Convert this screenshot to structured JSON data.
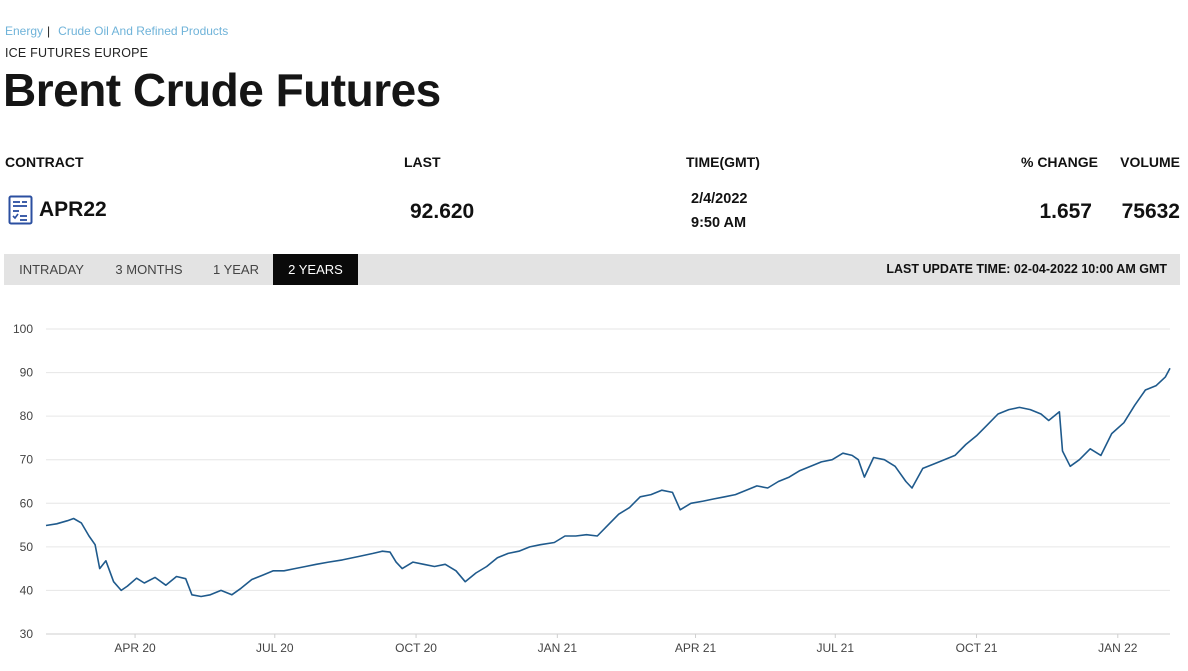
{
  "breadcrumb": {
    "sector": "Energy",
    "separator": "|",
    "category": "Crude Oil And Refined Products"
  },
  "exchange": "ICE FUTURES EUROPE",
  "title": "Brent Crude Futures",
  "table": {
    "headers": {
      "contract": "CONTRACT",
      "last": "LAST",
      "time": "TIME(GMT)",
      "pct_change": "% CHANGE",
      "volume": "VOLUME"
    },
    "row": {
      "contract": "APR22",
      "last": "92.620",
      "date": "2/4/2022",
      "time": "9:50 AM",
      "pct_change": "1.657",
      "volume": "75632"
    }
  },
  "tabs": [
    {
      "label": "INTRADAY",
      "active": false
    },
    {
      "label": "3 MONTHS",
      "active": false
    },
    {
      "label": "1 YEAR",
      "active": false
    },
    {
      "label": "2 YEARS",
      "active": true
    }
  ],
  "last_update": "LAST UPDATE TIME: 02-04-2022 10:00 AM GMT",
  "colors": {
    "line": "#1f5a8c",
    "grid": "#e6e6e6",
    "tab_active": "#0a0a0a",
    "link": "#6fb3d9"
  },
  "chart_data": {
    "type": "line",
    "ylim": [
      30,
      100
    ],
    "yticks": [
      100,
      90,
      80,
      70,
      60,
      50,
      40,
      30
    ],
    "xlim": [
      "2020-02-03",
      "2022-02-04"
    ],
    "xticks": [
      {
        "date": "2020-04-01",
        "label": "APR 20"
      },
      {
        "date": "2020-07-01",
        "label": "JUL 20"
      },
      {
        "date": "2020-10-01",
        "label": "OCT 20"
      },
      {
        "date": "2021-01-01",
        "label": "JAN 21"
      },
      {
        "date": "2021-04-01",
        "label": "APR 21"
      },
      {
        "date": "2021-07-01",
        "label": "JUL 21"
      },
      {
        "date": "2021-10-01",
        "label": "OCT 21"
      },
      {
        "date": "2022-01-01",
        "label": "JAN 22"
      }
    ],
    "grid": true,
    "legend": "none",
    "series": [
      {
        "points": [
          [
            "2020-02-03",
            54.9
          ],
          [
            "2020-02-10",
            55.3
          ],
          [
            "2020-02-17",
            56.0
          ],
          [
            "2020-02-21",
            56.5
          ],
          [
            "2020-02-26",
            55.5
          ],
          [
            "2020-03-02",
            52.5
          ],
          [
            "2020-03-06",
            50.5
          ],
          [
            "2020-03-09",
            45.0
          ],
          [
            "2020-03-13",
            46.8
          ],
          [
            "2020-03-18",
            42.0
          ],
          [
            "2020-03-23",
            40.0
          ],
          [
            "2020-03-27",
            41.0
          ],
          [
            "2020-04-02",
            42.8
          ],
          [
            "2020-04-07",
            41.7
          ],
          [
            "2020-04-14",
            43.0
          ],
          [
            "2020-04-21",
            41.2
          ],
          [
            "2020-04-28",
            43.2
          ],
          [
            "2020-05-04",
            42.7
          ],
          [
            "2020-05-08",
            39.0
          ],
          [
            "2020-05-14",
            38.6
          ],
          [
            "2020-05-20",
            39.0
          ],
          [
            "2020-05-27",
            40.0
          ],
          [
            "2020-06-03",
            39.0
          ],
          [
            "2020-06-09",
            40.5
          ],
          [
            "2020-06-16",
            42.5
          ],
          [
            "2020-06-23",
            43.5
          ],
          [
            "2020-06-30",
            44.5
          ],
          [
            "2020-07-07",
            44.5
          ],
          [
            "2020-07-14",
            45.0
          ],
          [
            "2020-07-21",
            45.5
          ],
          [
            "2020-07-28",
            46.0
          ],
          [
            "2020-08-05",
            46.5
          ],
          [
            "2020-08-14",
            47.0
          ],
          [
            "2020-08-25",
            47.8
          ],
          [
            "2020-09-03",
            48.5
          ],
          [
            "2020-09-09",
            49.0
          ],
          [
            "2020-09-14",
            48.8
          ],
          [
            "2020-09-18",
            46.5
          ],
          [
            "2020-09-22",
            45.0
          ],
          [
            "2020-09-29",
            46.5
          ],
          [
            "2020-10-06",
            46.0
          ],
          [
            "2020-10-13",
            45.5
          ],
          [
            "2020-10-20",
            46.0
          ],
          [
            "2020-10-27",
            44.5
          ],
          [
            "2020-11-02",
            42.0
          ],
          [
            "2020-11-09",
            44.0
          ],
          [
            "2020-11-16",
            45.5
          ],
          [
            "2020-11-23",
            47.5
          ],
          [
            "2020-11-30",
            48.5
          ],
          [
            "2020-12-07",
            49.0
          ],
          [
            "2020-12-14",
            50.0
          ],
          [
            "2020-12-21",
            50.5
          ],
          [
            "2020-12-30",
            51.0
          ],
          [
            "2021-01-06",
            52.5
          ],
          [
            "2021-01-13",
            52.5
          ],
          [
            "2021-01-20",
            52.8
          ],
          [
            "2021-01-27",
            52.5
          ],
          [
            "2021-02-03",
            55.0
          ],
          [
            "2021-02-10",
            57.5
          ],
          [
            "2021-02-17",
            59.0
          ],
          [
            "2021-02-24",
            61.5
          ],
          [
            "2021-03-03",
            62.0
          ],
          [
            "2021-03-10",
            63.0
          ],
          [
            "2021-03-17",
            62.5
          ],
          [
            "2021-03-22",
            58.5
          ],
          [
            "2021-03-29",
            60.0
          ],
          [
            "2021-04-06",
            60.5
          ],
          [
            "2021-04-13",
            61.0
          ],
          [
            "2021-04-20",
            61.5
          ],
          [
            "2021-04-27",
            62.0
          ],
          [
            "2021-05-04",
            63.0
          ],
          [
            "2021-05-11",
            64.0
          ],
          [
            "2021-05-18",
            63.5
          ],
          [
            "2021-05-25",
            65.0
          ],
          [
            "2021-06-01",
            66.0
          ],
          [
            "2021-06-08",
            67.5
          ],
          [
            "2021-06-15",
            68.5
          ],
          [
            "2021-06-22",
            69.5
          ],
          [
            "2021-06-29",
            70.0
          ],
          [
            "2021-07-06",
            71.5
          ],
          [
            "2021-07-12",
            71.0
          ],
          [
            "2021-07-16",
            70.0
          ],
          [
            "2021-07-20",
            66.0
          ],
          [
            "2021-07-26",
            70.5
          ],
          [
            "2021-08-02",
            70.0
          ],
          [
            "2021-08-09",
            68.5
          ],
          [
            "2021-08-16",
            65.0
          ],
          [
            "2021-08-20",
            63.5
          ],
          [
            "2021-08-27",
            68.0
          ],
          [
            "2021-09-03",
            69.0
          ],
          [
            "2021-09-10",
            70.0
          ],
          [
            "2021-09-17",
            71.0
          ],
          [
            "2021-09-24",
            73.5
          ],
          [
            "2021-10-01",
            75.5
          ],
          [
            "2021-10-08",
            78.0
          ],
          [
            "2021-10-15",
            80.5
          ],
          [
            "2021-10-22",
            81.5
          ],
          [
            "2021-10-29",
            82.0
          ],
          [
            "2021-11-05",
            81.5
          ],
          [
            "2021-11-12",
            80.5
          ],
          [
            "2021-11-17",
            79.0
          ],
          [
            "2021-11-24",
            81.0
          ],
          [
            "2021-11-26",
            72.0
          ],
          [
            "2021-12-01",
            68.5
          ],
          [
            "2021-12-07",
            70.0
          ],
          [
            "2021-12-14",
            72.5
          ],
          [
            "2021-12-21",
            71.0
          ],
          [
            "2021-12-28",
            76.0
          ],
          [
            "2022-01-05",
            78.5
          ],
          [
            "2022-01-12",
            82.5
          ],
          [
            "2022-01-19",
            86.0
          ],
          [
            "2022-01-26",
            87.0
          ],
          [
            "2022-02-01",
            89.0
          ],
          [
            "2022-02-04",
            91.0
          ]
        ]
      }
    ]
  }
}
